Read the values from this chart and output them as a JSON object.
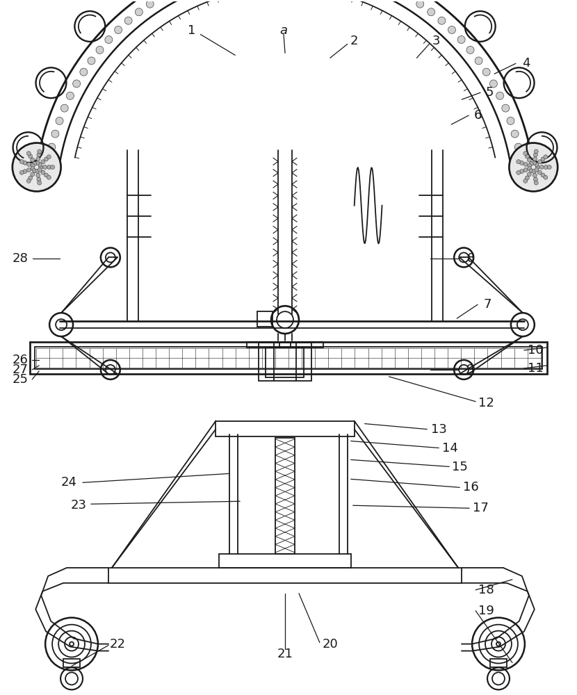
{
  "bg_color": "#ffffff",
  "line_color": "#1a1a1a",
  "label_color": "#1a1a1a",
  "label_fontsize": 13,
  "lw": 1.3,
  "fig_width": 8.3,
  "fig_height": 10.0
}
